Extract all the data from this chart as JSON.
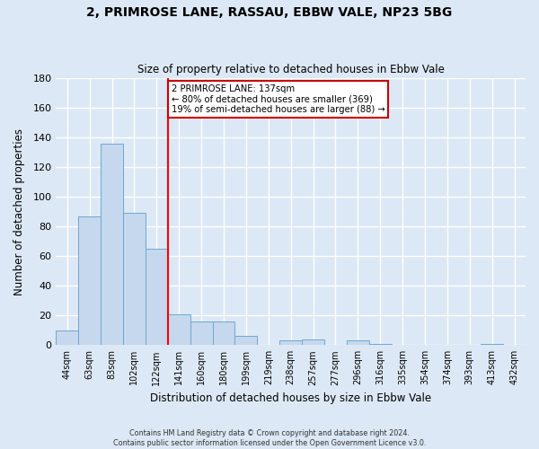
{
  "title": "2, PRIMROSE LANE, RASSAU, EBBW VALE, NP23 5BG",
  "subtitle": "Size of property relative to detached houses in Ebbw Vale",
  "xlabel": "Distribution of detached houses by size in Ebbw Vale",
  "ylabel": "Number of detached properties",
  "bar_labels": [
    "44sqm",
    "63sqm",
    "83sqm",
    "102sqm",
    "122sqm",
    "141sqm",
    "160sqm",
    "180sqm",
    "199sqm",
    "219sqm",
    "238sqm",
    "257sqm",
    "277sqm",
    "296sqm",
    "316sqm",
    "335sqm",
    "354sqm",
    "374sqm",
    "393sqm",
    "413sqm",
    "432sqm"
  ],
  "bar_values": [
    10,
    87,
    136,
    89,
    65,
    21,
    16,
    16,
    6,
    0,
    3,
    4,
    0,
    3,
    1,
    0,
    0,
    0,
    0,
    1,
    0
  ],
  "bar_color": "#c5d8ed",
  "bar_edge_color": "#6fa8d0",
  "ylim": [
    0,
    180
  ],
  "yticks": [
    0,
    20,
    40,
    60,
    80,
    100,
    120,
    140,
    160,
    180
  ],
  "property_line_idx": 5,
  "annotation_title": "2 PRIMROSE LANE: 137sqm",
  "annotation_line1": "← 80% of detached houses are smaller (369)",
  "annotation_line2": "19% of semi-detached houses are larger (88) →",
  "footer_line1": "Contains HM Land Registry data © Crown copyright and database right 2024.",
  "footer_line2": "Contains public sector information licensed under the Open Government Licence v3.0.",
  "background_color": "#dce8f5",
  "plot_bg_color": "#dce8f5",
  "grid_color": "white"
}
